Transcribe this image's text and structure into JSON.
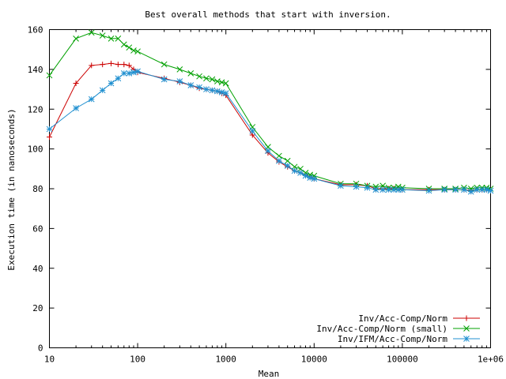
{
  "chart_data": {
    "type": "line",
    "title": "Best overall methods that start with inversion.",
    "xlabel": "Mean",
    "ylabel": "Execution time (in nanoseconds)",
    "xscale": "log",
    "xlim": [
      10,
      1000000
    ],
    "ylim": [
      0,
      160
    ],
    "x_ticks": [
      10,
      100,
      1000,
      10000,
      100000,
      1000000
    ],
    "x_tick_labels": [
      "10",
      "100",
      "1000",
      "10000",
      "100000",
      "1e+06"
    ],
    "y_ticks": [
      0,
      20,
      40,
      60,
      80,
      100,
      120,
      140,
      160
    ],
    "y_tick_labels": [
      "0",
      "20",
      "40",
      "60",
      "80",
      "100",
      "120",
      "140",
      "160"
    ],
    "grid": false,
    "legend_position": "bottom-right",
    "series": [
      {
        "name": "Inv/Acc-Comp/Norm",
        "color": "#cc0000",
        "marker": "plus",
        "points": [
          [
            10,
            106
          ],
          [
            20,
            133
          ],
          [
            30,
            142
          ],
          [
            40,
            142.5
          ],
          [
            50,
            143
          ],
          [
            60,
            142.5
          ],
          [
            70,
            142.5
          ],
          [
            80,
            142
          ],
          [
            90,
            140
          ],
          [
            100,
            138.5
          ],
          [
            200,
            135.5
          ],
          [
            300,
            133.5
          ],
          [
            400,
            132
          ],
          [
            500,
            130.5
          ],
          [
            600,
            130
          ],
          [
            700,
            129.5
          ],
          [
            800,
            129
          ],
          [
            900,
            128
          ],
          [
            1000,
            127
          ],
          [
            2000,
            107
          ],
          [
            3000,
            98
          ],
          [
            4000,
            93.5
          ],
          [
            5000,
            91
          ],
          [
            6000,
            89
          ],
          [
            7000,
            88
          ],
          [
            8000,
            87
          ],
          [
            9000,
            86
          ],
          [
            10000,
            85
          ],
          [
            20000,
            82
          ],
          [
            30000,
            82
          ],
          [
            40000,
            81.5
          ],
          [
            50000,
            80
          ],
          [
            60000,
            80
          ],
          [
            70000,
            80
          ],
          [
            80000,
            80
          ],
          [
            90000,
            80
          ],
          [
            100000,
            79.5
          ],
          [
            200000,
            79.5
          ],
          [
            300000,
            79.5
          ],
          [
            400000,
            79.5
          ],
          [
            500000,
            79.5
          ],
          [
            600000,
            79
          ],
          [
            700000,
            79.5
          ],
          [
            800000,
            79.5
          ],
          [
            900000,
            79.5
          ],
          [
            1000000,
            79
          ]
        ]
      },
      {
        "name": "Inv/Acc-Comp/Norm (small)",
        "color": "#00a000",
        "marker": "cross",
        "points": [
          [
            10,
            137
          ],
          [
            20,
            155.5
          ],
          [
            30,
            158.5
          ],
          [
            40,
            157
          ],
          [
            50,
            155.5
          ],
          [
            60,
            155.5
          ],
          [
            70,
            152.5
          ],
          [
            80,
            151
          ],
          [
            90,
            149.5
          ],
          [
            100,
            149
          ],
          [
            200,
            142.5
          ],
          [
            300,
            140
          ],
          [
            400,
            138
          ],
          [
            500,
            136.5
          ],
          [
            600,
            135.5
          ],
          [
            700,
            135
          ],
          [
            800,
            134
          ],
          [
            900,
            133.5
          ],
          [
            1000,
            133
          ],
          [
            2000,
            111
          ],
          [
            3000,
            101
          ],
          [
            4000,
            96.5
          ],
          [
            5000,
            94
          ],
          [
            6000,
            91
          ],
          [
            7000,
            90
          ],
          [
            8000,
            88
          ],
          [
            9000,
            87
          ],
          [
            10000,
            86.5
          ],
          [
            20000,
            82.5
          ],
          [
            30000,
            82.5
          ],
          [
            40000,
            81.5
          ],
          [
            50000,
            81
          ],
          [
            60000,
            81.5
          ],
          [
            70000,
            80.5
          ],
          [
            80000,
            80.5
          ],
          [
            90000,
            81
          ],
          [
            100000,
            80.5
          ],
          [
            200000,
            80
          ],
          [
            300000,
            80
          ],
          [
            400000,
            80
          ],
          [
            500000,
            80.5
          ],
          [
            600000,
            80
          ],
          [
            700000,
            80.5
          ],
          [
            800000,
            80.5
          ],
          [
            900000,
            80.5
          ],
          [
            1000000,
            80
          ]
        ]
      },
      {
        "name": "Inv/IFM/Acc-Comp/Norm",
        "color": "#2090d0",
        "marker": "star",
        "points": [
          [
            10,
            110
          ],
          [
            20,
            120.5
          ],
          [
            30,
            125
          ],
          [
            40,
            129.5
          ],
          [
            50,
            133
          ],
          [
            60,
            135.5
          ],
          [
            70,
            138
          ],
          [
            80,
            138
          ],
          [
            90,
            138.5
          ],
          [
            100,
            139
          ],
          [
            200,
            135
          ],
          [
            300,
            134
          ],
          [
            400,
            132
          ],
          [
            500,
            131
          ],
          [
            600,
            130
          ],
          [
            700,
            129.5
          ],
          [
            800,
            129
          ],
          [
            900,
            128.5
          ],
          [
            1000,
            128
          ],
          [
            2000,
            109
          ],
          [
            3000,
            99
          ],
          [
            4000,
            94
          ],
          [
            5000,
            91.5
          ],
          [
            6000,
            89
          ],
          [
            7000,
            88
          ],
          [
            8000,
            86.5
          ],
          [
            9000,
            85.5
          ],
          [
            10000,
            85
          ],
          [
            20000,
            81.5
          ],
          [
            30000,
            81
          ],
          [
            40000,
            80.5
          ],
          [
            50000,
            79.5
          ],
          [
            60000,
            79.5
          ],
          [
            70000,
            79.5
          ],
          [
            80000,
            79.5
          ],
          [
            90000,
            79.5
          ],
          [
            100000,
            79.5
          ],
          [
            200000,
            79
          ],
          [
            300000,
            79.5
          ],
          [
            400000,
            79.5
          ],
          [
            500000,
            79.5
          ],
          [
            600000,
            78.5
          ],
          [
            700000,
            79.5
          ],
          [
            800000,
            79.5
          ],
          [
            900000,
            79.5
          ],
          [
            1000000,
            79
          ]
        ]
      }
    ]
  }
}
